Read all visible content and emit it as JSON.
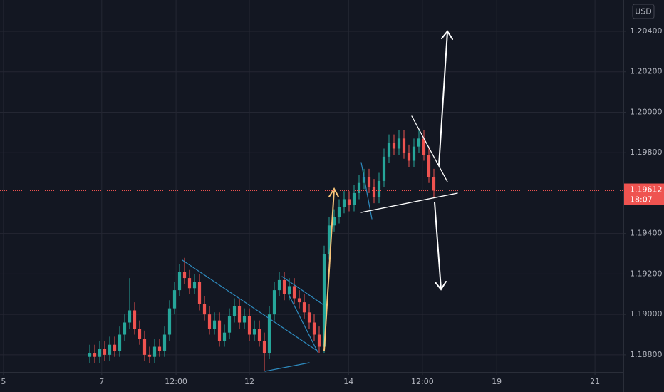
{
  "chart_data": {
    "type": "candlestick",
    "currency": "USD",
    "last_price": 1.19612,
    "countdown": "18:07",
    "up_color": "#26a69a",
    "down_color": "#ef5350",
    "grid": true,
    "xlim": [
      0,
      125
    ],
    "ylim": [
      1.18715,
      1.20555
    ],
    "xticks": [
      {
        "value": 0.7,
        "label": "5"
      },
      {
        "value": 20.4,
        "label": "7"
      },
      {
        "value": 35.3,
        "label": "12:00"
      },
      {
        "value": 50,
        "label": "12"
      },
      {
        "value": 69.9,
        "label": "14"
      },
      {
        "value": 84.7,
        "label": "12:00"
      },
      {
        "value": 99.6,
        "label": "19"
      },
      {
        "value": 119.3,
        "label": "21"
      }
    ],
    "yticks": [
      {
        "value": 1.188,
        "label": "1.18800"
      },
      {
        "value": 1.19,
        "label": "1.19000"
      },
      {
        "value": 1.192,
        "label": "1.19200"
      },
      {
        "value": 1.194,
        "label": "1.19400"
      },
      {
        "value": 1.198,
        "label": "1.19800"
      },
      {
        "value": 1.2,
        "label": "1.20000"
      },
      {
        "value": 1.202,
        "label": "1.20200"
      },
      {
        "value": 1.204,
        "label": "1.20400"
      }
    ],
    "x": [
      18,
      19,
      20,
      21,
      22,
      23,
      24,
      25,
      26,
      27,
      28,
      29,
      30,
      31,
      32,
      33,
      34,
      35,
      36,
      37,
      38,
      39,
      40,
      41,
      42,
      43,
      44,
      45,
      46,
      47,
      48,
      49,
      50,
      51,
      52,
      53,
      54,
      55,
      56,
      57,
      58,
      59,
      60,
      61,
      62,
      63,
      64,
      65,
      66,
      67,
      68,
      69,
      70,
      71,
      72,
      73,
      74,
      75,
      76,
      77,
      78,
      79,
      80,
      81,
      82,
      83,
      84,
      85,
      86,
      87
    ],
    "open": [
      1.1879,
      1.1881,
      1.1879,
      1.1883,
      1.188,
      1.1885,
      1.1882,
      1.189,
      1.1896,
      1.1902,
      1.1893,
      1.1888,
      1.188,
      1.1879,
      1.1884,
      1.1882,
      1.189,
      1.1903,
      1.1912,
      1.1921,
      1.1918,
      1.1913,
      1.1916,
      1.1905,
      1.19,
      1.1893,
      1.1897,
      1.1887,
      1.1891,
      1.1899,
      1.1904,
      1.1896,
      1.1899,
      1.189,
      1.1893,
      1.1887,
      1.1881,
      1.19,
      1.1912,
      1.1917,
      1.191,
      1.1914,
      1.1908,
      1.1906,
      1.1901,
      1.1896,
      1.189,
      1.1884,
      1.193,
      1.1944,
      1.1948,
      1.1953,
      1.1957,
      1.1954,
      1.196,
      1.1965,
      1.1968,
      1.1963,
      1.1958,
      1.1966,
      1.1978,
      1.1985,
      1.1982,
      1.1987,
      1.198,
      1.1976,
      1.1983,
      1.1987,
      1.1979,
      1.1968
    ],
    "high": [
      1.1885,
      1.1885,
      1.1887,
      1.1887,
      1.1889,
      1.1889,
      1.1894,
      1.19,
      1.1918,
      1.1906,
      1.1897,
      1.1892,
      1.1884,
      1.1888,
      1.1888,
      1.1894,
      1.1907,
      1.1916,
      1.1925,
      1.1928,
      1.1922,
      1.192,
      1.192,
      1.1909,
      1.1904,
      1.1901,
      1.1901,
      1.1895,
      1.1903,
      1.1908,
      1.1908,
      1.1903,
      1.1903,
      1.1897,
      1.1897,
      1.1891,
      1.1904,
      1.1916,
      1.1921,
      1.1921,
      1.1918,
      1.1918,
      1.1912,
      1.191,
      1.1905,
      1.19,
      1.1894,
      1.1934,
      1.1948,
      1.1952,
      1.1957,
      1.1961,
      1.1961,
      1.1964,
      1.1969,
      1.1972,
      1.1972,
      1.1967,
      1.197,
      1.1982,
      1.1989,
      1.1989,
      1.1991,
      1.1991,
      1.1984,
      1.1987,
      1.1991,
      1.1991,
      1.1983,
      1.1972
    ],
    "low": [
      1.1876,
      1.1876,
      1.1876,
      1.1877,
      1.1877,
      1.1879,
      1.1879,
      1.1887,
      1.1893,
      1.189,
      1.1885,
      1.1877,
      1.1876,
      1.1876,
      1.1879,
      1.1879,
      1.1887,
      1.19,
      1.1909,
      1.1915,
      1.191,
      1.191,
      1.1902,
      1.1897,
      1.189,
      1.189,
      1.1884,
      1.1884,
      1.1888,
      1.1896,
      1.1893,
      1.1893,
      1.1887,
      1.1887,
      1.1884,
      1.1872,
      1.1878,
      1.1897,
      1.1909,
      1.1907,
      1.1907,
      1.1905,
      1.1903,
      1.1898,
      1.1893,
      1.1887,
      1.1881,
      1.1881,
      1.1927,
      1.1941,
      1.1945,
      1.195,
      1.1951,
      1.1951,
      1.1957,
      1.1962,
      1.196,
      1.1955,
      1.1955,
      1.1963,
      1.1975,
      1.1979,
      1.1979,
      1.1977,
      1.1973,
      1.1973,
      1.198,
      1.1976,
      1.1965,
      1.1958
    ],
    "close": [
      1.1881,
      1.1879,
      1.1883,
      1.188,
      1.1885,
      1.1882,
      1.189,
      1.1896,
      1.1902,
      1.1893,
      1.1888,
      1.188,
      1.1879,
      1.1884,
      1.1882,
      1.189,
      1.1903,
      1.1912,
      1.1921,
      1.1918,
      1.1913,
      1.1916,
      1.1905,
      1.19,
      1.1893,
      1.1897,
      1.1887,
      1.1891,
      1.1899,
      1.1904,
      1.1896,
      1.1899,
      1.189,
      1.1893,
      1.1887,
      1.1881,
      1.19,
      1.1912,
      1.1917,
      1.191,
      1.1914,
      1.1908,
      1.1906,
      1.1901,
      1.1896,
      1.189,
      1.1884,
      1.193,
      1.1944,
      1.1948,
      1.1953,
      1.1957,
      1.1954,
      1.196,
      1.1965,
      1.1968,
      1.1963,
      1.1958,
      1.1966,
      1.1978,
      1.1985,
      1.1982,
      1.1987,
      1.198,
      1.1976,
      1.1983,
      1.1987,
      1.1979,
      1.1968,
      1.19612
    ]
  }
}
